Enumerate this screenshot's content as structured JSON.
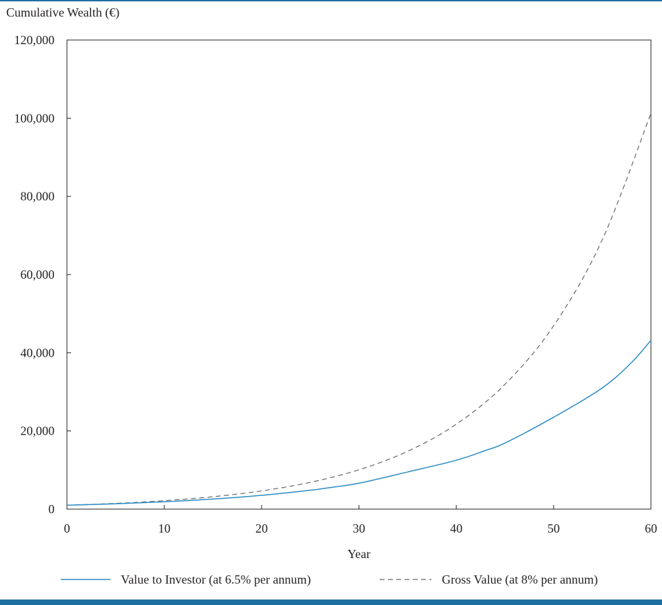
{
  "chart_data": {
    "type": "line",
    "ylabel": "Cumulative Wealth (€)",
    "xlabel": "Year",
    "xlim": [
      0,
      60
    ],
    "ylim": [
      0,
      120000
    ],
    "xticks": [
      "0",
      "10",
      "20",
      "30",
      "40",
      "50",
      "60"
    ],
    "yticks": [
      "0",
      "20,000",
      "40,000",
      "60,000",
      "80,000",
      "100,000",
      "120,000"
    ],
    "grid": false,
    "legend_position": "bottom",
    "series": [
      {
        "name": "Value to Investor (at 6.5% per annum)",
        "style": "solid",
        "color": "#2b8cc4",
        "x": [
          0,
          5,
          10,
          15,
          20,
          25,
          27,
          30,
          35,
          40,
          43,
          45,
          50,
          55,
          58,
          60
        ],
        "y": [
          1000,
          1370,
          1877,
          2572,
          3524,
          4828,
          5500,
          6614,
          9500,
          12500,
          15000,
          16900,
          23500,
          31000,
          37500,
          43200
        ]
      },
      {
        "name": "Gross Value (at 8% per annum)",
        "style": "dashed",
        "color": "#666666",
        "x": [
          0,
          5,
          10,
          15,
          20,
          25,
          30,
          35,
          40,
          45,
          50,
          55,
          60
        ],
        "y": [
          1000,
          1469,
          2159,
          3172,
          4661,
          6848,
          10063,
          14785,
          21725,
          31920,
          46902,
          68914,
          101257
        ]
      }
    ]
  }
}
